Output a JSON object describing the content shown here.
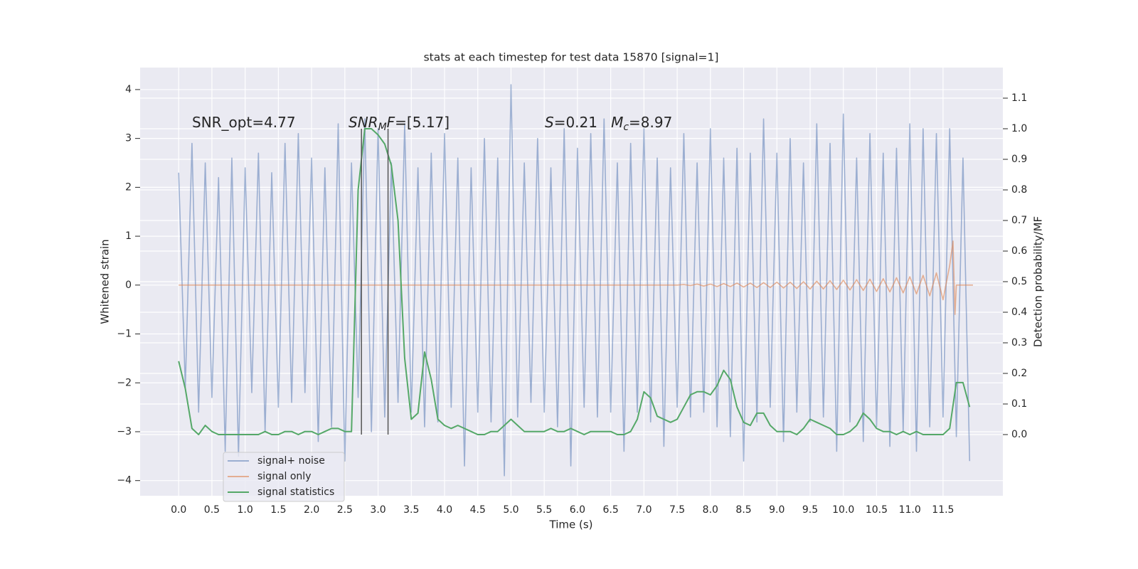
{
  "chart_data": {
    "type": "line",
    "title": "stats at each timestep for test data 15870 [signal=1]",
    "xlabel": "Time (s)",
    "ylabel": "Whitened strain",
    "y2label": "Detection probability/MF",
    "xlim": [
      -0.58,
      12.4
    ],
    "ylim": [
      -4.31,
      4.45
    ],
    "y2lim": [
      -0.2,
      1.2
    ],
    "xticks": [
      {
        "value": 0,
        "label": "0.0"
      },
      0.5,
      {
        "value": 1,
        "label": "1.0"
      },
      1.5,
      {
        "value": 2,
        "label": "2.0"
      },
      2.5,
      {
        "value": 3,
        "label": "3.0"
      },
      3.5,
      {
        "value": 4,
        "label": "4.0"
      },
      4.5,
      {
        "value": 5,
        "label": "5.0"
      },
      5.5,
      {
        "value": 6,
        "label": "6.0"
      },
      6.5,
      {
        "value": 7,
        "label": "7.0"
      },
      7.5,
      {
        "value": 8,
        "label": "8.0"
      },
      8.5,
      {
        "value": 9,
        "label": "9.0"
      },
      9.5,
      {
        "value": 10,
        "label": "10.0"
      },
      10.5,
      {
        "value": 11,
        "label": "11.0"
      },
      11.5
    ],
    "yticks": [
      {
        "value": -4,
        "label": "−4"
      },
      {
        "value": -3,
        "label": "−3"
      },
      {
        "value": -2,
        "label": "−2"
      },
      {
        "value": -1,
        "label": "−1"
      },
      0,
      1,
      2,
      3,
      4
    ],
    "y2ticks": [
      {
        "value": 0,
        "label": "0.0"
      },
      0.1,
      0.2,
      0.3,
      0.4,
      0.5,
      0.6,
      0.7,
      0.8,
      0.9,
      {
        "value": 1,
        "label": "1.0"
      },
      1.1
    ],
    "grid": true,
    "legend": "lower left",
    "x": [
      0,
      0.1,
      0.2,
      0.3,
      0.4,
      0.5,
      0.6,
      0.7,
      0.8,
      0.9,
      1,
      1.1,
      1.2,
      1.3,
      1.4,
      1.5,
      1.6,
      1.7,
      1.8,
      1.9,
      2,
      2.1,
      2.2,
      2.3,
      2.4,
      2.5,
      2.6,
      2.7,
      2.8,
      2.9,
      3,
      3.1,
      3.2,
      3.3,
      3.4,
      3.5,
      3.6,
      3.7,
      3.8,
      3.9,
      4,
      4.1,
      4.2,
      4.3,
      4.4,
      4.5,
      4.6,
      4.7,
      4.8,
      4.9,
      5,
      5.1,
      5.2,
      5.3,
      5.4,
      5.5,
      5.6,
      5.7,
      5.8,
      5.9,
      6,
      6.1,
      6.2,
      6.3,
      6.4,
      6.5,
      6.6,
      6.7,
      6.8,
      6.9,
      7,
      7.1,
      7.2,
      7.3,
      7.4,
      7.5,
      7.6,
      7.7,
      7.8,
      7.9,
      8,
      8.1,
      8.2,
      8.3,
      8.4,
      8.5,
      8.6,
      8.7,
      8.8,
      8.9,
      9,
      9.1,
      9.2,
      9.3,
      9.4,
      9.5,
      9.6,
      9.7,
      9.8,
      9.9,
      10,
      10.1,
      10.2,
      10.3,
      10.4,
      10.5,
      10.6,
      10.7,
      10.8,
      10.9,
      11,
      11.1,
      11.2,
      11.3,
      11.4,
      11.5,
      11.6,
      11.7,
      11.8,
      11.9
    ],
    "series": [
      {
        "name": "signal+ noise",
        "color": "#4c72b0",
        "opacity": 0.5,
        "values": [
          2.3,
          -2.1,
          2.9,
          -2.6,
          2.5,
          -2.3,
          2.2,
          -3.4,
          2.6,
          -3.5,
          2.4,
          -2.2,
          2.7,
          -3.0,
          2.3,
          -2.5,
          2.9,
          -2.4,
          3.1,
          -2.2,
          2.6,
          -3.2,
          2.4,
          -2.9,
          3.3,
          -3.6,
          2.5,
          -2.3,
          3.4,
          -3.0,
          3.2,
          -2.7,
          2.5,
          -2.4,
          3.3,
          -2.6,
          2.4,
          -2.9,
          2.7,
          -2.8,
          3.1,
          -2.5,
          2.6,
          -3.7,
          2.4,
          -2.6,
          3.0,
          -2.8,
          2.6,
          -3.9,
          4.1,
          -2.7,
          2.5,
          -2.4,
          3.0,
          -2.6,
          2.4,
          -2.9,
          3.2,
          -3.7,
          2.8,
          -2.5,
          3.1,
          -2.7,
          3.4,
          -2.6,
          2.5,
          -3.4,
          2.9,
          -2.6,
          3.2,
          -2.8,
          2.6,
          -3.3,
          2.4,
          -2.5,
          3.1,
          -2.7,
          2.5,
          -2.6,
          3.2,
          -2.9,
          2.6,
          -3.1,
          2.8,
          -3.6,
          2.7,
          -2.8,
          3.4,
          -2.5,
          2.7,
          -3.2,
          3.0,
          -2.6,
          2.5,
          -2.8,
          3.3,
          -2.7,
          2.9,
          -3.4,
          3.5,
          -2.8,
          2.6,
          -3.2,
          3.1,
          -2.9,
          2.7,
          -3.3,
          2.8,
          -3.0,
          3.3,
          -3.4,
          3.2,
          -2.9,
          3.1,
          -2.7,
          3.2,
          -3.1,
          2.6,
          -3.6
        ]
      },
      {
        "name": "signal only",
        "color": "#dd8452",
        "opacity": 0.6,
        "x": [
          0,
          7.5,
          7.6,
          7.7,
          7.8,
          7.9,
          8,
          8.1,
          8.2,
          8.3,
          8.4,
          8.5,
          8.6,
          8.7,
          8.8,
          8.9,
          9,
          9.1,
          9.2,
          9.3,
          9.4,
          9.5,
          9.6,
          9.7,
          9.8,
          9.9,
          10,
          10.1,
          10.2,
          10.3,
          10.4,
          10.5,
          10.6,
          10.7,
          10.8,
          10.9,
          11,
          11.1,
          11.2,
          11.3,
          11.4,
          11.5,
          11.6,
          11.65,
          11.68,
          11.7,
          11.95
        ],
        "values": [
          0,
          0,
          0.01,
          -0.01,
          0.02,
          -0.02,
          0.02,
          -0.03,
          0.03,
          -0.03,
          0.04,
          -0.04,
          0.04,
          -0.05,
          0.05,
          -0.05,
          0.06,
          -0.06,
          0.06,
          -0.07,
          0.07,
          -0.08,
          0.08,
          -0.08,
          0.09,
          -0.09,
          0.1,
          -0.1,
          0.11,
          -0.11,
          0.12,
          -0.13,
          0.13,
          -0.14,
          0.15,
          -0.16,
          0.17,
          -0.18,
          0.2,
          -0.22,
          0.25,
          -0.3,
          0.4,
          0.9,
          -0.6,
          0,
          0
        ]
      },
      {
        "name": "signal statistics",
        "color": "#55a868",
        "opacity": 1,
        "axis": "y2",
        "values": [
          0.24,
          0.15,
          0.02,
          0,
          0.03,
          0.01,
          0,
          0,
          0,
          0,
          0,
          0,
          0,
          0.01,
          0,
          0,
          0.01,
          0.01,
          0,
          0.01,
          0.01,
          0,
          0.01,
          0.02,
          0.02,
          0.01,
          0.01,
          0.8,
          1.0,
          1.0,
          0.98,
          0.95,
          0.88,
          0.7,
          0.25,
          0.05,
          0.07,
          0.27,
          0.18,
          0.05,
          0.03,
          0.02,
          0.03,
          0.02,
          0.01,
          0,
          0,
          0.01,
          0.01,
          0.03,
          0.05,
          0.03,
          0.01,
          0.01,
          0.01,
          0.01,
          0.02,
          0.01,
          0.01,
          0.02,
          0.01,
          0,
          0.01,
          0.01,
          0.01,
          0.01,
          0,
          0,
          0.01,
          0.05,
          0.14,
          0.12,
          0.06,
          0.05,
          0.04,
          0.05,
          0.09,
          0.13,
          0.14,
          0.14,
          0.13,
          0.16,
          0.21,
          0.18,
          0.09,
          0.04,
          0.03,
          0.07,
          0.07,
          0.03,
          0.01,
          0.01,
          0.01,
          0,
          0.02,
          0.05,
          0.04,
          0.03,
          0.02,
          0,
          0,
          0.01,
          0.03,
          0.07,
          0.05,
          0.02,
          0.01,
          0.01,
          0,
          0.01,
          0,
          0.01,
          0,
          0,
          0,
          0,
          0.02,
          0.17,
          0.17,
          0.09
        ]
      }
    ],
    "vlines": {
      "x": [
        2.75,
        3.15
      ],
      "y2range": [
        0,
        1
      ],
      "color": "#555555"
    },
    "annotations": [
      [
        {
          "text": "SNR_opt=4.77"
        }
      ],
      [
        {
          "text": "SNR",
          "italic": true
        },
        {
          "text": "M",
          "italic": true,
          "sub": true
        },
        {
          "text": "F",
          "italic": true
        },
        {
          "text": "=[5.17]"
        }
      ],
      [
        {
          "text": "S",
          "italic": true
        },
        {
          "text": "=0.21   "
        },
        {
          "text": "M",
          "italic": true
        },
        {
          "text": "c",
          "italic": true,
          "sub": true
        },
        {
          "text": "=8.97"
        }
      ]
    ]
  }
}
